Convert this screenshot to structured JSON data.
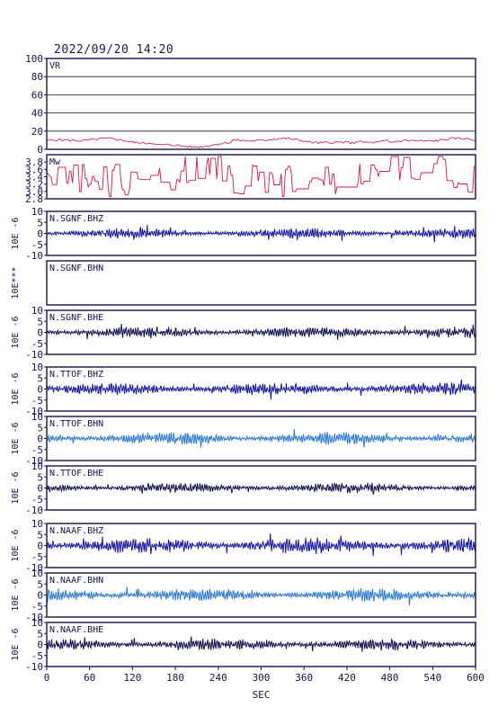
{
  "header": {
    "date_time": "2022/09/20 14:20"
  },
  "colors": {
    "frame": "#14144a",
    "vr": "#d42a5a",
    "mw": "#e0143c",
    "dark_blue": "#1414a0",
    "navy": "#10104e",
    "light_blue": "#2878d2"
  },
  "chart_data": {
    "type": "line",
    "xlabel": "SEC",
    "xlim": [
      0,
      600
    ],
    "xticks": [
      "0",
      "60",
      "120",
      "180",
      "240",
      "300",
      "360",
      "420",
      "480",
      "540",
      "600"
    ],
    "panels": [
      {
        "id": "vr",
        "label": "VR",
        "ylim": [
          0,
          100
        ],
        "yticks": [
          "0",
          "20",
          "40",
          "60",
          "80",
          "100"
        ],
        "gridlines": [
          20,
          40,
          60,
          80
        ],
        "color": "vr",
        "series_kind": "vr"
      },
      {
        "id": "mw",
        "label": "Mw",
        "ylim": [
          2.8,
          4.0
        ],
        "yticks": [
          "2.8",
          "3.0",
          "3.2",
          "3.4",
          "3.6",
          "3.8"
        ],
        "gridlines": [],
        "color": "mw",
        "series_kind": "mw"
      },
      {
        "id": "sgnf_bhz",
        "label": "N.SGNF.BHZ",
        "ylabel": "10E -6",
        "ylim": [
          -10,
          10
        ],
        "yticks": [
          "-10",
          "-5",
          "0",
          "5",
          "10"
        ],
        "color": "dark_blue",
        "series_kind": "wave",
        "amp": 1.3,
        "seed": 11
      },
      {
        "id": "sgnf_bhn",
        "label": "N.SGNF.BHN",
        "ylabel": "10E***",
        "ylim": null,
        "yticks": [],
        "color": "navy",
        "series_kind": "none"
      },
      {
        "id": "sgnf_bhe",
        "label": "N.SGNF.BHE",
        "ylabel": "10E -6",
        "ylim": [
          -10,
          10
        ],
        "yticks": [
          "-10",
          "-5",
          "0",
          "5",
          "10"
        ],
        "color": "navy",
        "series_kind": "wave",
        "amp": 1.5,
        "seed": 23
      },
      {
        "id": "ttof_bhz",
        "label": "N.TTOF.BHZ",
        "ylabel": "10E -6",
        "ylim": [
          -10,
          10
        ],
        "yticks": [
          "-10",
          "-5",
          "0",
          "5",
          "10"
        ],
        "color": "dark_blue",
        "series_kind": "wave",
        "amp": 1.6,
        "seed": 37
      },
      {
        "id": "ttof_bhn",
        "label": "N.TTOF.BHN",
        "ylabel": "10E -6",
        "ylim": [
          -10,
          10
        ],
        "yticks": [
          "-10",
          "-5",
          "0",
          "5",
          "10"
        ],
        "color": "light_blue",
        "series_kind": "wave",
        "amp": 1.6,
        "seed": 41
      },
      {
        "id": "ttof_bhe",
        "label": "N.TTOF.BHE",
        "ylabel": "10E -6",
        "ylim": [
          -10,
          10
        ],
        "yticks": [
          "-10",
          "-5",
          "0",
          "5",
          "10"
        ],
        "color": "navy",
        "series_kind": "wave",
        "amp": 1.3,
        "seed": 53
      },
      {
        "id": "naaf_bhz",
        "label": "N.NAAF.BHZ",
        "ylabel": "10E -6",
        "ylim": [
          -10,
          10
        ],
        "yticks": [
          "-10",
          "-5",
          "0",
          "5",
          "10"
        ],
        "color": "dark_blue",
        "series_kind": "wave",
        "amp": 2.1,
        "seed": 67
      },
      {
        "id": "naaf_bhn",
        "label": "N.NAAF.BHN",
        "ylabel": "10E -6",
        "ylim": [
          -10,
          10
        ],
        "yticks": [
          "-10",
          "-5",
          "0",
          "5",
          "10"
        ],
        "color": "light_blue",
        "series_kind": "wave",
        "amp": 1.7,
        "seed": 71
      },
      {
        "id": "naaf_bhe",
        "label": "N.NAAF.BHE",
        "ylabel": "10E -6",
        "ylim": [
          -10,
          10
        ],
        "yticks": [
          "-10",
          "-5",
          "0",
          "5",
          "10"
        ],
        "color": "navy",
        "series_kind": "wave",
        "amp": 1.5,
        "seed": 83
      }
    ]
  }
}
